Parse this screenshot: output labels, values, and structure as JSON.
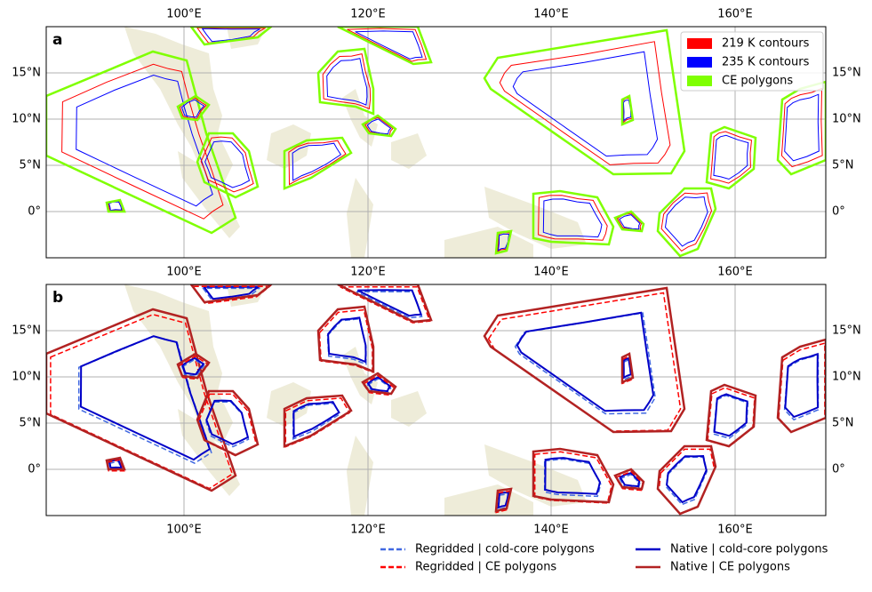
{
  "panels": [
    {
      "label": "a",
      "x_ticks": [
        "100°E",
        "120°E",
        "140°E",
        "160°E"
      ],
      "y_ticks": [
        "15°N",
        "10°N",
        "5°N",
        "0°"
      ],
      "legend": [
        "219 K contours",
        "235 K contours",
        "CE polygons"
      ]
    },
    {
      "label": "b",
      "x_ticks": [
        "100°E",
        "120°E",
        "140°E",
        "160°E"
      ],
      "y_ticks": [
        "15°N",
        "10°N",
        "5°N",
        "0°"
      ]
    }
  ],
  "legend": [
    "Regridded | cold-core polygons",
    "Regridded | CE polygons",
    "Native | cold-core polygons",
    "Native | CE polygons"
  ]
}
